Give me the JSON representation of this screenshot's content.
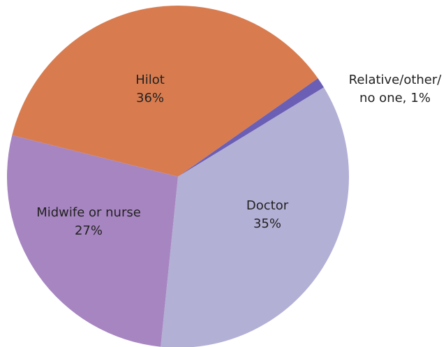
{
  "chart_data": {
    "type": "pie",
    "categories": [
      "Hilot",
      "Relative/other/\nno one,",
      "Doctor",
      "Midwife or nurse"
    ],
    "values": [
      36,
      1,
      35,
      27
    ],
    "value_labels": [
      "36%",
      "1%",
      "35%",
      "27%"
    ],
    "colors": [
      "#d87c50",
      "#6b5fb5",
      "#b3b0d6",
      "#a785c1"
    ]
  }
}
